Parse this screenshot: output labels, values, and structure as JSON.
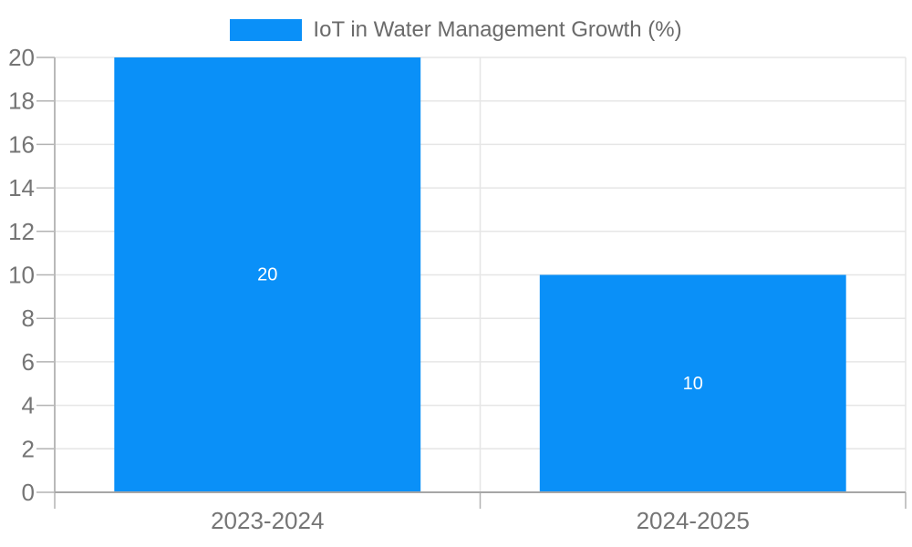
{
  "chart_data": {
    "type": "bar",
    "title": "IoT in Water Management Growth (%)",
    "categories": [
      "2023-2024",
      "2024-2025"
    ],
    "values": [
      20,
      10
    ],
    "bar_value_labels": [
      "20",
      "10"
    ],
    "xlabel": "",
    "ylabel": "",
    "ylim": [
      0,
      20
    ],
    "ytick_step": 2,
    "yticks": [
      0,
      2,
      4,
      6,
      8,
      10,
      12,
      14,
      16,
      18,
      20
    ],
    "grid": true,
    "legend": {
      "label": "IoT in Water Management Growth (%)",
      "position": "top-center"
    },
    "colors": {
      "bar": "#0a90f8",
      "bar_label_text": "#ffffff",
      "grid_line": "#e6e6e6",
      "tick_line": "#b3b3b3",
      "x_axis_line": "#a6a6a6",
      "y_axis_line": "#b9b9b9",
      "tick_label": "#757575",
      "legend_text": "#6a6a6a",
      "background": "#ffffff"
    }
  }
}
